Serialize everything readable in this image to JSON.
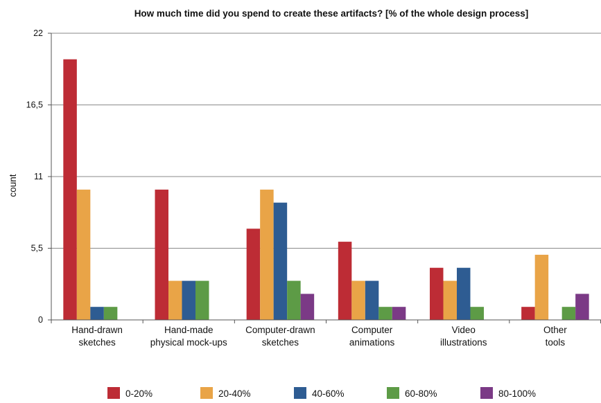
{
  "chart_data": {
    "type": "bar",
    "title": "How much time did you spend to create these artifacts? [% of the whole design process]",
    "xlabel": "",
    "ylabel": "count",
    "ylim": [
      0,
      22
    ],
    "yticks": [
      "0",
      "5,5",
      "11",
      "16,5",
      "22"
    ],
    "ytick_values": [
      0,
      5.5,
      11,
      16.5,
      22
    ],
    "grid": true,
    "legend_position": "bottom",
    "categories": [
      [
        "Hand-drawn",
        "sketches"
      ],
      [
        "Hand-made",
        "physical mock-ups"
      ],
      [
        "Computer-drawn",
        "sketches"
      ],
      [
        "Computer",
        "animations"
      ],
      [
        "Video",
        "illustrations"
      ],
      [
        "Other",
        "tools"
      ]
    ],
    "series": [
      {
        "name": "0-20%",
        "color": "#BD2C35",
        "values": [
          20,
          10,
          7,
          6,
          4,
          1
        ]
      },
      {
        "name": "20-40%",
        "color": "#E9A447",
        "values": [
          10,
          3,
          10,
          3,
          3,
          5
        ]
      },
      {
        "name": "40-60%",
        "color": "#2E5C92",
        "values": [
          1,
          3,
          9,
          3,
          4,
          0
        ]
      },
      {
        "name": "60-80%",
        "color": "#5D9B46",
        "values": [
          1,
          3,
          3,
          1,
          1,
          1
        ]
      },
      {
        "name": "80-100%",
        "color": "#7B3A86",
        "values": [
          0,
          0,
          2,
          1,
          0,
          2
        ]
      }
    ]
  }
}
